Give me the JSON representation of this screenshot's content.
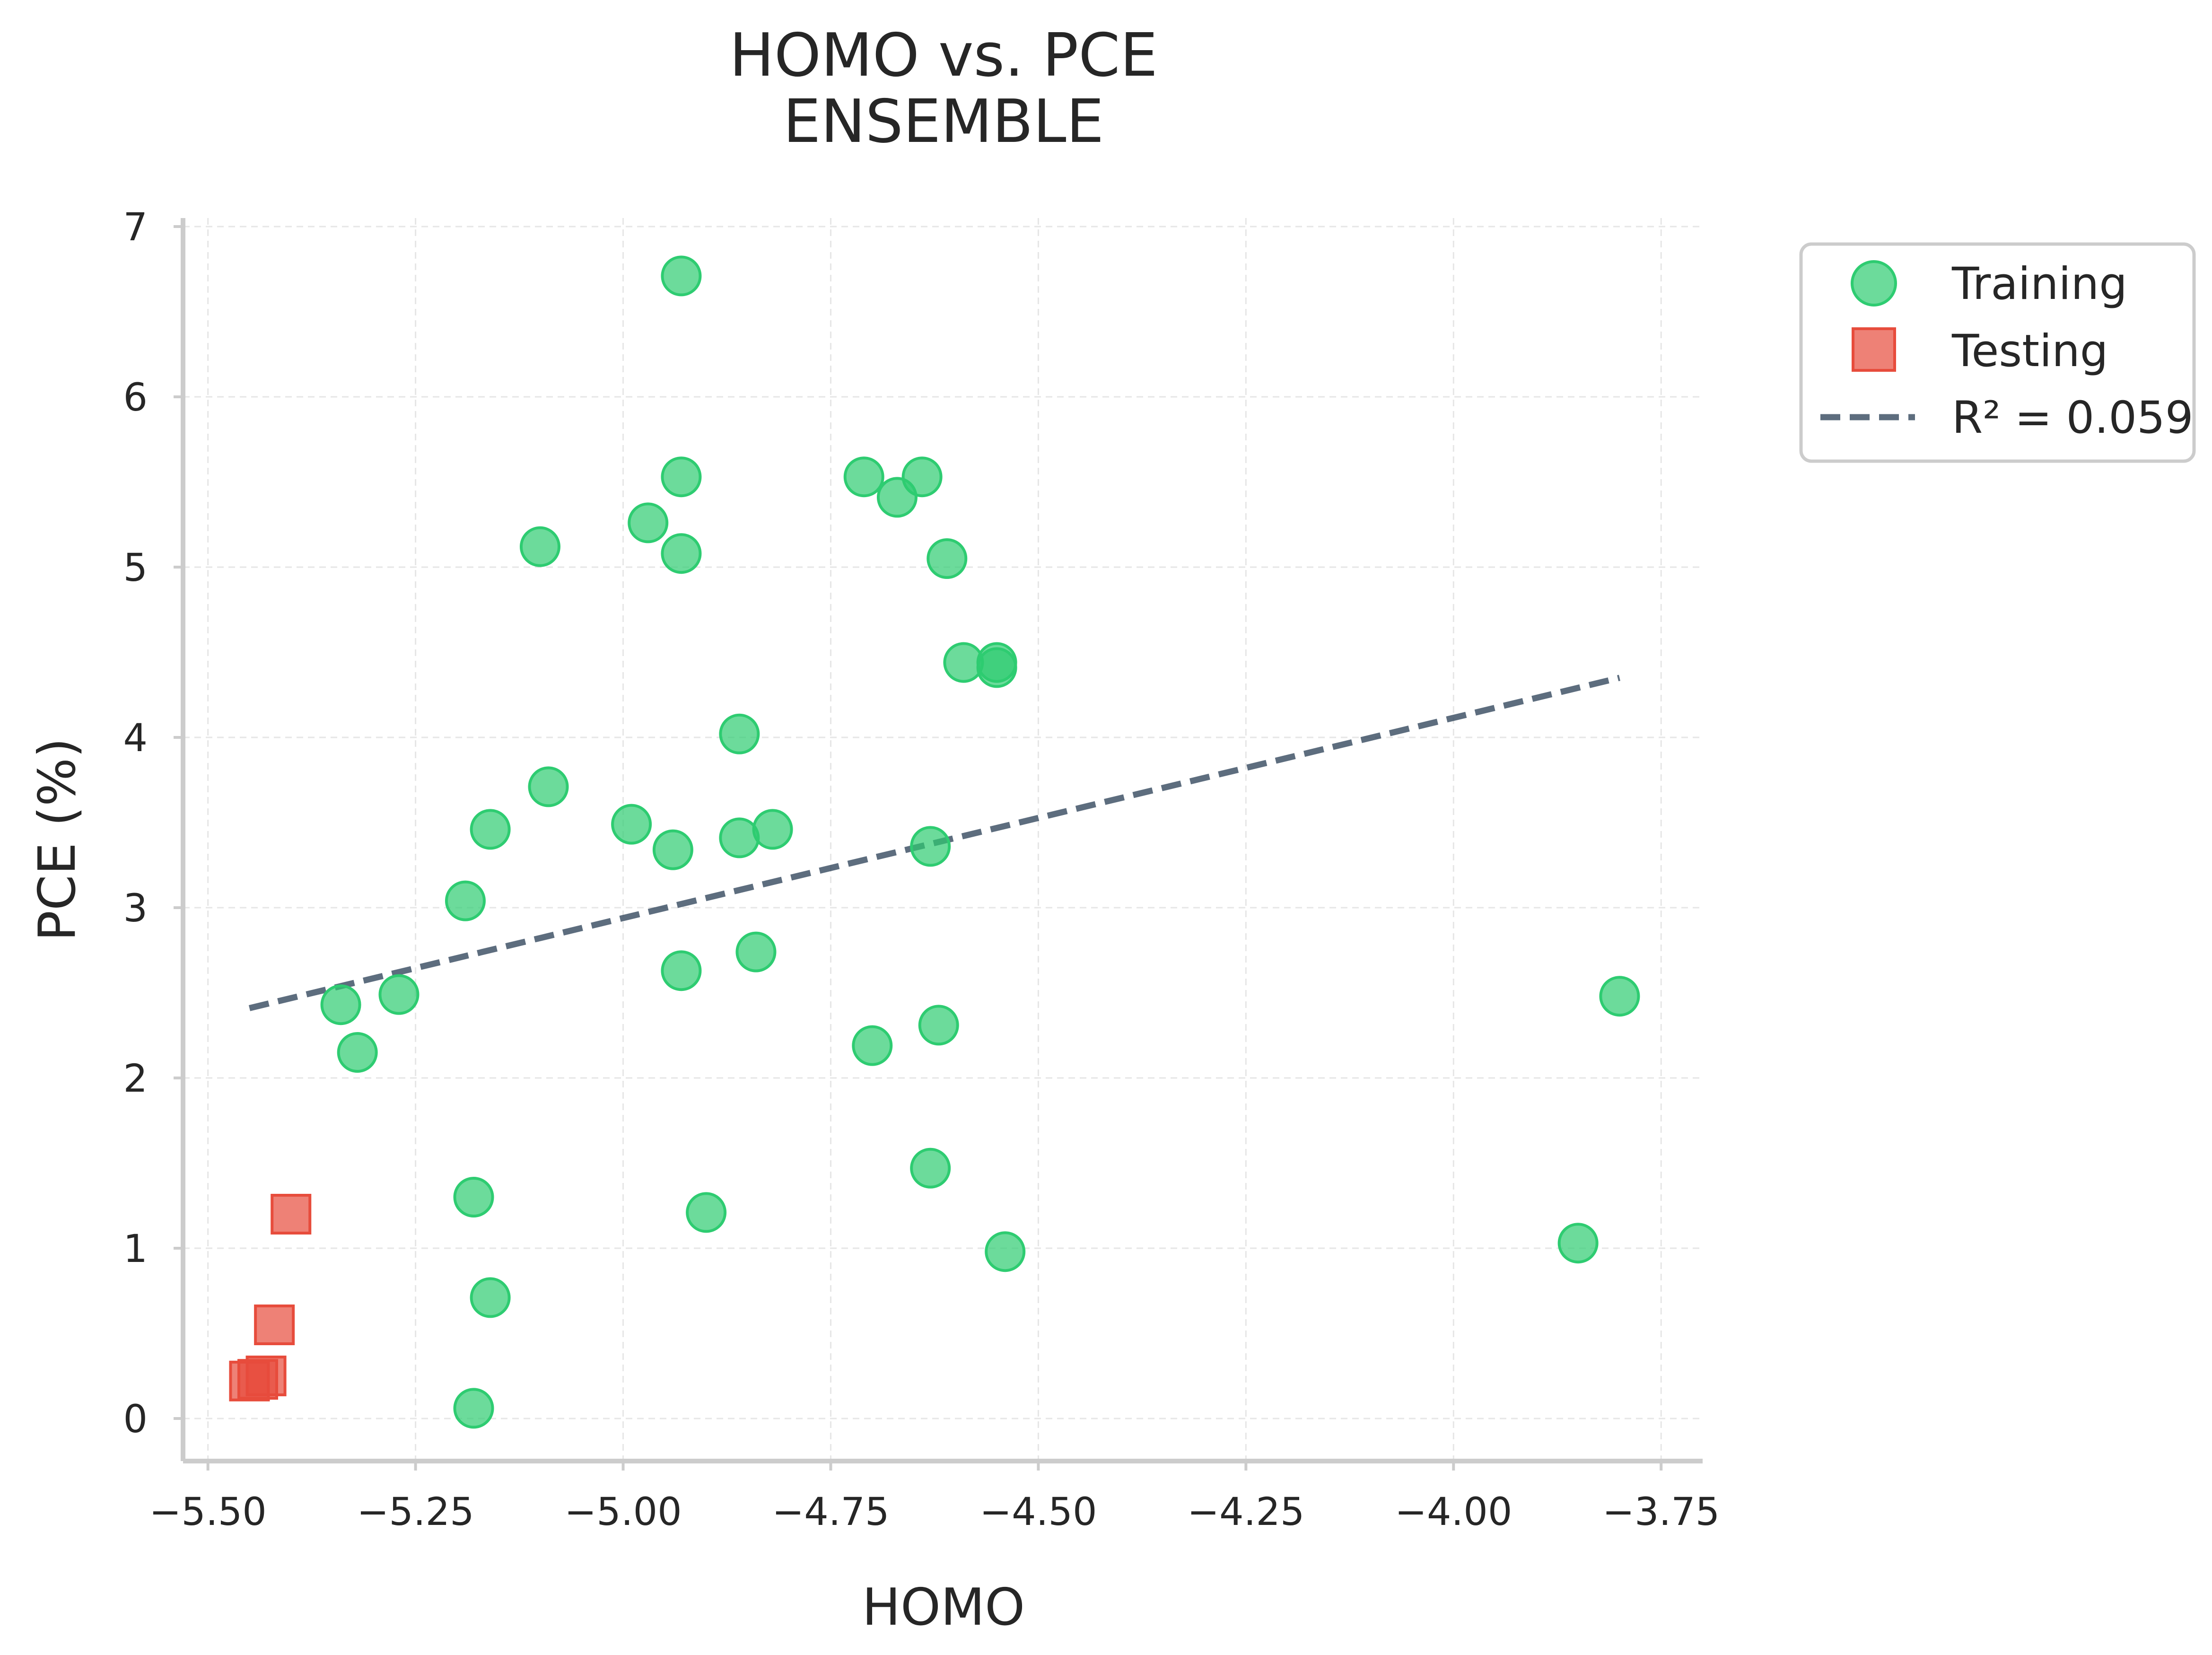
{
  "chart_data": {
    "type": "scatter",
    "title_lines": [
      "HOMO vs. PCE",
      "ENSEMBLE"
    ],
    "xlabel": "HOMO",
    "ylabel": "PCE (%)",
    "xlim": [
      -5.53,
      -3.7
    ],
    "ylim": [
      -0.25,
      7.05
    ],
    "xticks": [
      -5.5,
      -5.25,
      -5.0,
      -4.75,
      -4.5,
      -4.25,
      -4.0,
      -3.75
    ],
    "xtick_labels": [
      "−5.50",
      "−5.25",
      "−5.00",
      "−4.75",
      "−4.50",
      "−4.25",
      "−4.00",
      "−3.75"
    ],
    "yticks": [
      0,
      1,
      2,
      3,
      4,
      5,
      6,
      7
    ],
    "ytick_labels": [
      "0",
      "1",
      "2",
      "3",
      "4",
      "5",
      "6",
      "7"
    ],
    "grid": true,
    "legend_position": "outside-top-right",
    "series": [
      {
        "name": "Training",
        "marker": "circle",
        "color": "#2ecc71",
        "points": [
          [
            -4.93,
            6.71
          ],
          [
            -4.93,
            5.53
          ],
          [
            -4.71,
            5.53
          ],
          [
            -4.64,
            5.53
          ],
          [
            -4.67,
            5.41
          ],
          [
            -4.97,
            5.26
          ],
          [
            -5.1,
            5.12
          ],
          [
            -4.93,
            5.08
          ],
          [
            -4.61,
            5.05
          ],
          [
            -4.59,
            4.44
          ],
          [
            -4.55,
            4.44
          ],
          [
            -4.55,
            4.41
          ],
          [
            -4.86,
            4.02
          ],
          [
            -5.09,
            3.71
          ],
          [
            -4.99,
            3.49
          ],
          [
            -5.16,
            3.46
          ],
          [
            -4.82,
            3.46
          ],
          [
            -4.94,
            3.34
          ],
          [
            -4.86,
            3.41
          ],
          [
            -4.63,
            3.36
          ],
          [
            -5.19,
            3.04
          ],
          [
            -4.84,
            2.74
          ],
          [
            -4.93,
            2.63
          ],
          [
            -5.27,
            2.49
          ],
          [
            -5.34,
            2.43
          ],
          [
            -3.8,
            2.48
          ],
          [
            -4.62,
            2.31
          ],
          [
            -4.7,
            2.19
          ],
          [
            -5.32,
            2.15
          ],
          [
            -4.63,
            1.47
          ],
          [
            -5.18,
            1.3
          ],
          [
            -4.9,
            1.21
          ],
          [
            -3.85,
            1.03
          ],
          [
            -4.54,
            0.98
          ],
          [
            -5.16,
            0.71
          ],
          [
            -5.18,
            0.06
          ]
        ]
      },
      {
        "name": "Testing",
        "marker": "square",
        "color": "#e74c3c",
        "points": [
          [
            -5.4,
            1.2
          ],
          [
            -5.42,
            0.55
          ],
          [
            -5.43,
            0.25
          ],
          [
            -5.45,
            0.22
          ],
          [
            -5.44,
            0.23
          ]
        ]
      }
    ],
    "fit_line": {
      "name": "R² = 0.059",
      "style": "dashed",
      "color": "#34495e",
      "x": [
        -5.45,
        -3.8
      ],
      "y": [
        2.41,
        4.35
      ]
    }
  }
}
